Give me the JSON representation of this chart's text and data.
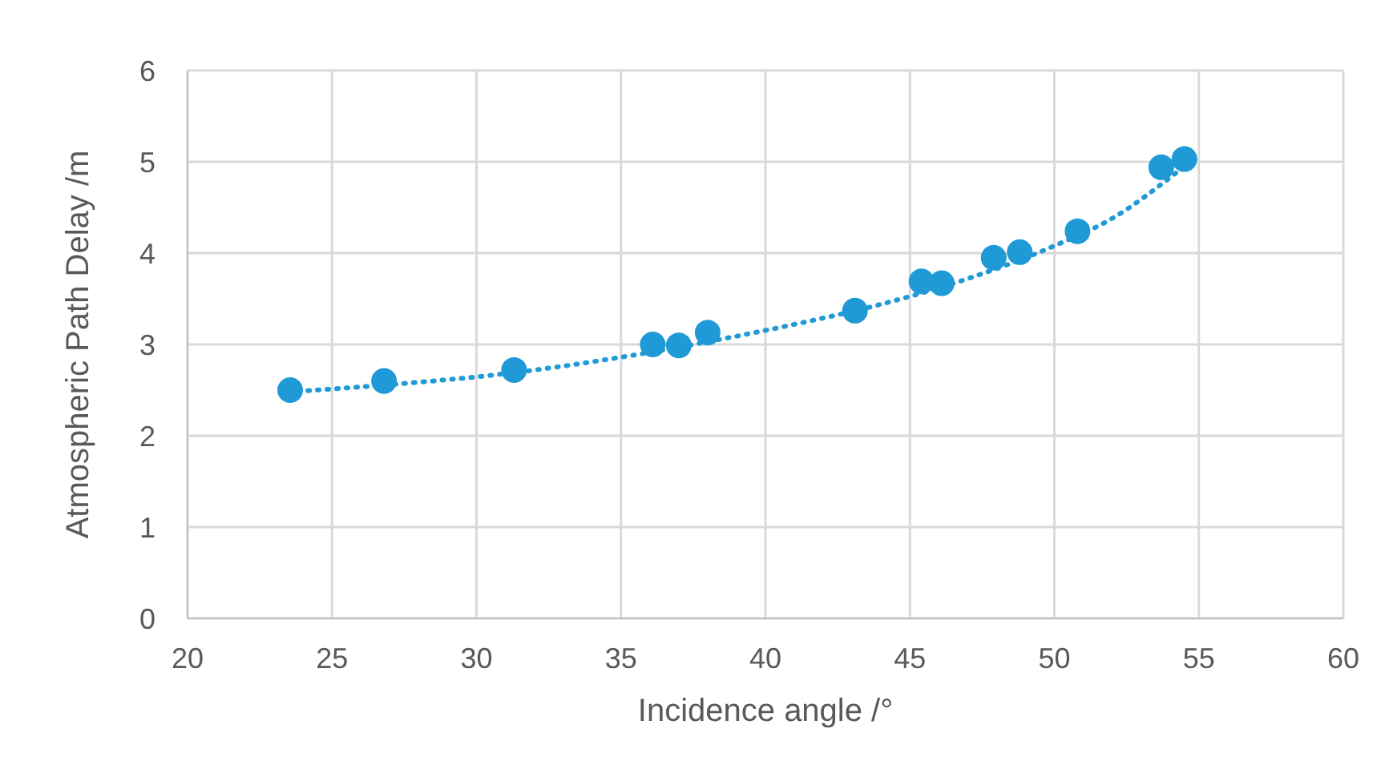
{
  "chart_data": {
    "type": "scatter",
    "xlabel": "Incidence angle /°",
    "ylabel": "Atmospheric Path Delay /m",
    "xlim": [
      20,
      60
    ],
    "xticks": [
      20,
      25,
      30,
      35,
      40,
      45,
      50,
      55,
      60
    ],
    "ylim": [
      0,
      6
    ],
    "yticks": [
      0,
      1,
      2,
      3,
      4,
      5,
      6
    ],
    "grid": true,
    "legend": false,
    "series": [
      {
        "color": "#1f9ad6",
        "marker": "circle",
        "x": [
          23.55,
          26.8,
          31.3,
          36.1,
          37.0,
          38.0,
          43.1,
          45.4,
          46.1,
          47.9,
          48.8,
          50.8,
          53.7,
          54.5
        ],
        "values": [
          2.5,
          2.6,
          2.72,
          3.0,
          2.99,
          3.13,
          3.37,
          3.69,
          3.67,
          3.95,
          4.01,
          4.24,
          4.94,
          5.03
        ]
      },
      {
        "type": "line",
        "color": "#1f9ad6",
        "marker": "none",
        "line_style": "dotted",
        "x": [
          23.5,
          27,
          31,
          35,
          38,
          41,
          44,
          47,
          50,
          52,
          54.3
        ],
        "values": [
          2.48,
          2.56,
          2.68,
          2.86,
          3.03,
          3.22,
          3.44,
          3.72,
          4.08,
          4.38,
          4.9
        ]
      }
    ]
  }
}
